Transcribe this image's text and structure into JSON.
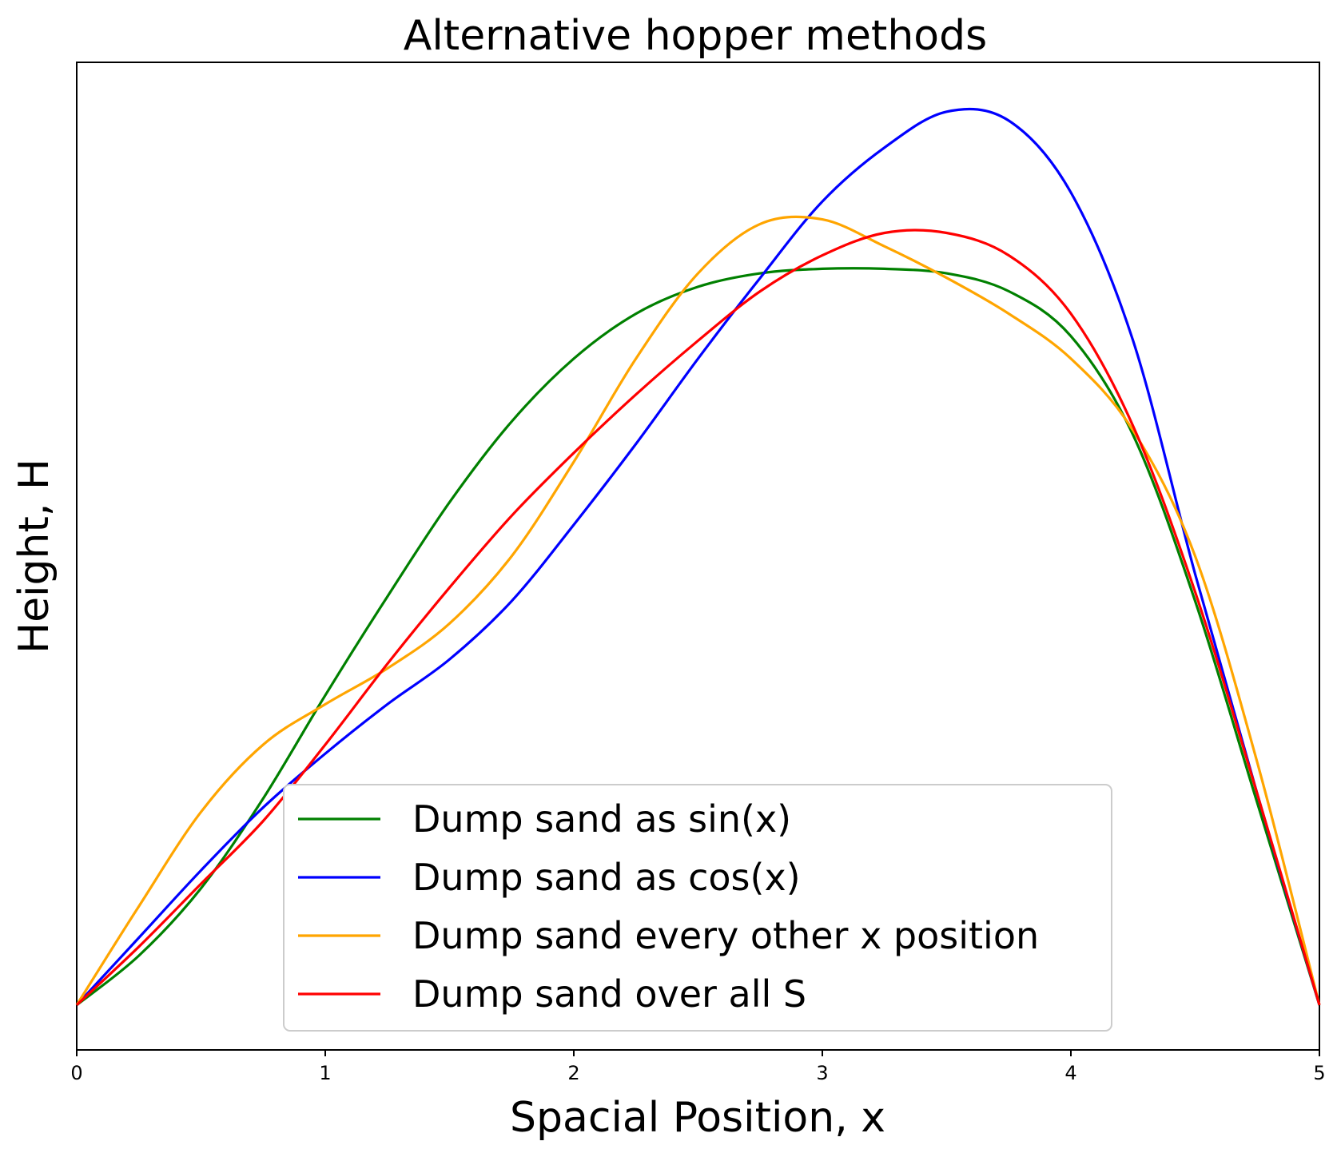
{
  "chart_data": {
    "type": "line",
    "title": "Alternative hopper methods",
    "xlabel": "Spacial Position, x",
    "ylabel": "Height, H",
    "xlim": [
      0,
      5
    ],
    "ylim": [
      -0.05,
      1.05
    ],
    "x_ticks": [
      "0",
      "1",
      "2",
      "3",
      "4",
      "5"
    ],
    "y_ticks_shown": false,
    "grid": false,
    "legend_position": "lower-center",
    "series": [
      {
        "name": "Dump sand as sin(x)",
        "color": "#008000",
        "points": [
          [
            0,
            0
          ],
          [
            0.25,
            0.055
          ],
          [
            0.5,
            0.13
          ],
          [
            0.75,
            0.23
          ],
          [
            1,
            0.345
          ],
          [
            1.25,
            0.455
          ],
          [
            1.5,
            0.56
          ],
          [
            1.75,
            0.65
          ],
          [
            2,
            0.72
          ],
          [
            2.25,
            0.77
          ],
          [
            2.5,
            0.8
          ],
          [
            2.75,
            0.815
          ],
          [
            3,
            0.82
          ],
          [
            3.25,
            0.82
          ],
          [
            3.5,
            0.815
          ],
          [
            3.75,
            0.795
          ],
          [
            4,
            0.745
          ],
          [
            4.25,
            0.635
          ],
          [
            4.5,
            0.45
          ],
          [
            4.75,
            0.225
          ],
          [
            5,
            0
          ]
        ]
      },
      {
        "name": "Dump sand as cos(x)",
        "color": "#0000ff",
        "points": [
          [
            0,
            0
          ],
          [
            0.25,
            0.075
          ],
          [
            0.5,
            0.15
          ],
          [
            0.75,
            0.22
          ],
          [
            1,
            0.28
          ],
          [
            1.25,
            0.335
          ],
          [
            1.5,
            0.385
          ],
          [
            1.75,
            0.45
          ],
          [
            2,
            0.535
          ],
          [
            2.25,
            0.625
          ],
          [
            2.5,
            0.72
          ],
          [
            2.75,
            0.81
          ],
          [
            3,
            0.895
          ],
          [
            3.25,
            0.955
          ],
          [
            3.5,
            0.995
          ],
          [
            3.75,
            0.985
          ],
          [
            4,
            0.905
          ],
          [
            4.25,
            0.74
          ],
          [
            4.5,
            0.48
          ],
          [
            4.75,
            0.235
          ],
          [
            5,
            0
          ]
        ]
      },
      {
        "name": "Dump sand every other x position",
        "color": "#ffa500",
        "points": [
          [
            0,
            0
          ],
          [
            0.25,
            0.11
          ],
          [
            0.5,
            0.215
          ],
          [
            0.75,
            0.29
          ],
          [
            1,
            0.335
          ],
          [
            1.25,
            0.375
          ],
          [
            1.5,
            0.425
          ],
          [
            1.75,
            0.5
          ],
          [
            2,
            0.605
          ],
          [
            2.25,
            0.72
          ],
          [
            2.5,
            0.815
          ],
          [
            2.75,
            0.87
          ],
          [
            3,
            0.875
          ],
          [
            3.25,
            0.845
          ],
          [
            3.5,
            0.81
          ],
          [
            3.75,
            0.77
          ],
          [
            4,
            0.72
          ],
          [
            4.25,
            0.64
          ],
          [
            4.5,
            0.5
          ],
          [
            4.75,
            0.27
          ],
          [
            5,
            0
          ]
        ]
      },
      {
        "name": "Dump sand over all S",
        "color": "#ff0000",
        "points": [
          [
            0,
            0
          ],
          [
            0.25,
            0.065
          ],
          [
            0.5,
            0.135
          ],
          [
            0.75,
            0.205
          ],
          [
            1,
            0.29
          ],
          [
            1.25,
            0.38
          ],
          [
            1.5,
            0.465
          ],
          [
            1.75,
            0.545
          ],
          [
            2,
            0.615
          ],
          [
            2.25,
            0.68
          ],
          [
            2.5,
            0.74
          ],
          [
            2.75,
            0.795
          ],
          [
            3,
            0.835
          ],
          [
            3.25,
            0.86
          ],
          [
            3.5,
            0.86
          ],
          [
            3.75,
            0.835
          ],
          [
            4,
            0.77
          ],
          [
            4.25,
            0.645
          ],
          [
            4.5,
            0.46
          ],
          [
            4.75,
            0.235
          ],
          [
            5,
            0
          ]
        ]
      }
    ]
  }
}
